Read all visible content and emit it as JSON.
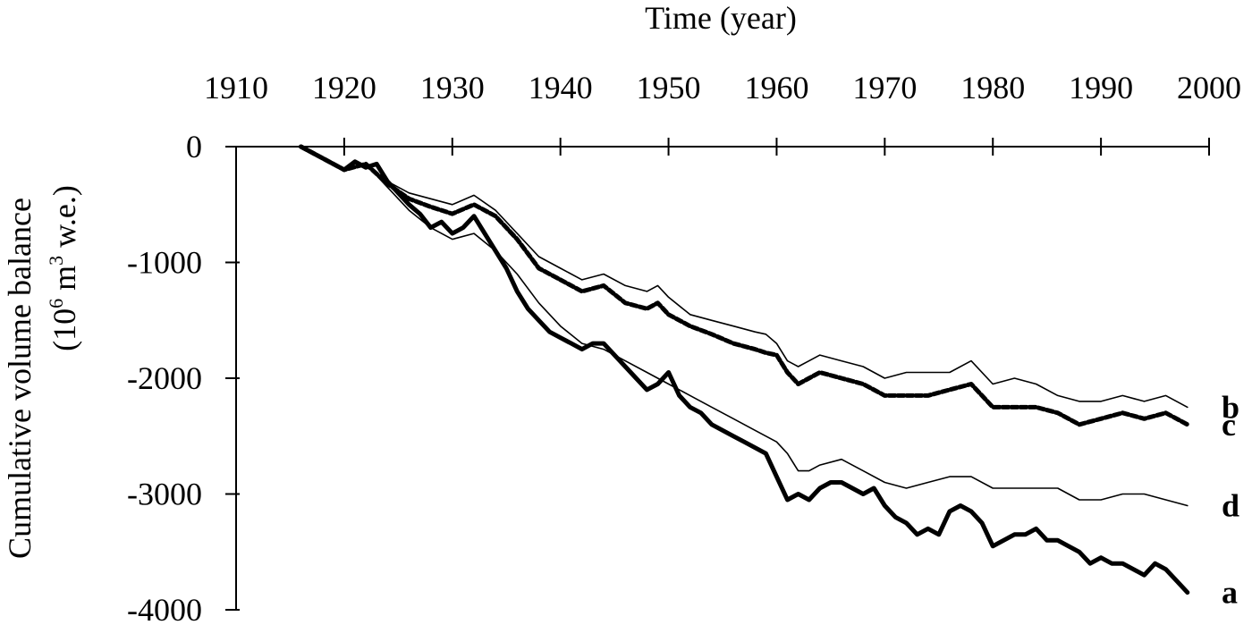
{
  "chart_data": {
    "type": "line",
    "xlabel": "Time (year)",
    "ylabel": "Cumulative volume balance",
    "ylabel_units_prefix": "(10",
    "ylabel_units_sup1": "6",
    "ylabel_units_mid": " m",
    "ylabel_units_sup2": "3",
    "ylabel_units_suffix": " w.e.)",
    "xlim": [
      1910,
      2000
    ],
    "ylim": [
      -4000,
      0
    ],
    "x_ticks": [
      1910,
      1920,
      1930,
      1940,
      1950,
      1960,
      1970,
      1980,
      1990,
      2000
    ],
    "y_ticks": [
      0,
      -1000,
      -2000,
      -3000,
      -4000
    ],
    "x_tick_labels": [
      "1910",
      "1920",
      "1930",
      "1940",
      "1950",
      "1960",
      "1970",
      "1980",
      "1990",
      "2000"
    ],
    "y_tick_labels": [
      "0",
      "-1000",
      "-2000",
      "-3000",
      "-4000"
    ],
    "x_axis_position": "top",
    "grid": false,
    "series": [
      {
        "name": "a",
        "style": "thick",
        "x": [
          1916,
          1918,
          1919,
          1920,
          1921,
          1922,
          1923,
          1924,
          1925,
          1926,
          1927,
          1928,
          1929,
          1930,
          1931,
          1932,
          1933,
          1934,
          1935,
          1936,
          1937,
          1938,
          1939,
          1940,
          1941,
          1942,
          1943,
          1944,
          1945,
          1946,
          1947,
          1948,
          1949,
          1950,
          1951,
          1952,
          1953,
          1954,
          1955,
          1956,
          1957,
          1958,
          1959,
          1960,
          1961,
          1962,
          1963,
          1964,
          1965,
          1966,
          1967,
          1968,
          1969,
          1970,
          1971,
          1972,
          1973,
          1974,
          1975,
          1976,
          1977,
          1978,
          1979,
          1980,
          1981,
          1982,
          1983,
          1984,
          1985,
          1986,
          1987,
          1988,
          1989,
          1990,
          1991,
          1992,
          1993,
          1994,
          1995,
          1996,
          1997,
          1998
        ],
        "values": [
          0,
          -100,
          -150,
          -200,
          -130,
          -180,
          -150,
          -300,
          -400,
          -500,
          -580,
          -700,
          -650,
          -750,
          -700,
          -600,
          -750,
          -900,
          -1050,
          -1250,
          -1400,
          -1500,
          -1600,
          -1650,
          -1700,
          -1750,
          -1700,
          -1700,
          -1800,
          -1900,
          -2000,
          -2100,
          -2050,
          -1950,
          -2150,
          -2250,
          -2300,
          -2400,
          -2450,
          -2500,
          -2550,
          -2600,
          -2650,
          -2850,
          -3050,
          -3000,
          -3050,
          -2950,
          -2900,
          -2900,
          -2950,
          -3000,
          -2950,
          -3100,
          -3200,
          -3250,
          -3350,
          -3300,
          -3350,
          -3150,
          -3100,
          -3150,
          -3250,
          -3450,
          -3400,
          -3350,
          -3350,
          -3300,
          -3400,
          -3400,
          -3450,
          -3500,
          -3600,
          -3550,
          -3600,
          -3600,
          -3650,
          -3700,
          -3600,
          -3650,
          -3750,
          -3850
        ]
      },
      {
        "name": "b",
        "style": "thin",
        "x": [
          1916,
          1918,
          1920,
          1922,
          1924,
          1926,
          1928,
          1930,
          1932,
          1934,
          1936,
          1938,
          1940,
          1942,
          1944,
          1946,
          1948,
          1949,
          1950,
          1952,
          1954,
          1956,
          1958,
          1959,
          1960,
          1961,
          1962,
          1963,
          1964,
          1966,
          1968,
          1970,
          1972,
          1974,
          1976,
          1978,
          1980,
          1982,
          1984,
          1986,
          1988,
          1990,
          1992,
          1994,
          1996,
          1998
        ],
        "values": [
          0,
          -100,
          -200,
          -150,
          -300,
          -400,
          -450,
          -500,
          -420,
          -550,
          -750,
          -950,
          -1050,
          -1150,
          -1100,
          -1200,
          -1250,
          -1200,
          -1300,
          -1450,
          -1500,
          -1550,
          -1600,
          -1620,
          -1700,
          -1850,
          -1900,
          -1850,
          -1800,
          -1850,
          -1900,
          -2000,
          -1950,
          -1950,
          -1950,
          -1850,
          -2050,
          -2000,
          -2050,
          -2150,
          -2200,
          -2200,
          -2150,
          -2200,
          -2150,
          -2250
        ]
      },
      {
        "name": "c",
        "style": "dashed",
        "x": [
          1916,
          1918,
          1920,
          1922,
          1924,
          1926,
          1928,
          1930,
          1932,
          1934,
          1936,
          1938,
          1940,
          1942,
          1944,
          1946,
          1948,
          1949,
          1950,
          1952,
          1954,
          1956,
          1958,
          1959,
          1960,
          1961,
          1962,
          1963,
          1964,
          1966,
          1968,
          1970,
          1972,
          1974,
          1976,
          1978,
          1980,
          1982,
          1984,
          1986,
          1988,
          1990,
          1992,
          1994,
          1996,
          1998
        ],
        "values": [
          0,
          -100,
          -200,
          -150,
          -320,
          -450,
          -520,
          -580,
          -500,
          -600,
          -800,
          -1050,
          -1150,
          -1250,
          -1200,
          -1350,
          -1400,
          -1350,
          -1450,
          -1550,
          -1620,
          -1700,
          -1750,
          -1780,
          -1800,
          -1950,
          -2050,
          -2000,
          -1950,
          -2000,
          -2050,
          -2150,
          -2150,
          -2150,
          -2100,
          -2050,
          -2250,
          -2250,
          -2250,
          -2300,
          -2400,
          -2350,
          -2300,
          -2350,
          -2300,
          -2400
        ]
      },
      {
        "name": "d",
        "style": "thin",
        "x": [
          1916,
          1918,
          1920,
          1922,
          1924,
          1926,
          1928,
          1930,
          1932,
          1934,
          1936,
          1938,
          1940,
          1942,
          1944,
          1946,
          1948,
          1950,
          1952,
          1954,
          1956,
          1958,
          1960,
          1961,
          1962,
          1963,
          1964,
          1966,
          1968,
          1970,
          1972,
          1974,
          1976,
          1978,
          1980,
          1982,
          1984,
          1986,
          1988,
          1990,
          1992,
          1994,
          1996,
          1998
        ],
        "values": [
          0,
          -100,
          -200,
          -150,
          -350,
          -550,
          -700,
          -800,
          -750,
          -900,
          -1100,
          -1350,
          -1550,
          -1700,
          -1750,
          -1850,
          -1950,
          -2050,
          -2150,
          -2250,
          -2350,
          -2450,
          -2550,
          -2650,
          -2800,
          -2800,
          -2750,
          -2700,
          -2800,
          -2900,
          -2950,
          -2900,
          -2850,
          -2850,
          -2950,
          -2950,
          -2950,
          -2950,
          -3050,
          -3050,
          -3000,
          -3000,
          -3050,
          -3100
        ]
      }
    ]
  }
}
